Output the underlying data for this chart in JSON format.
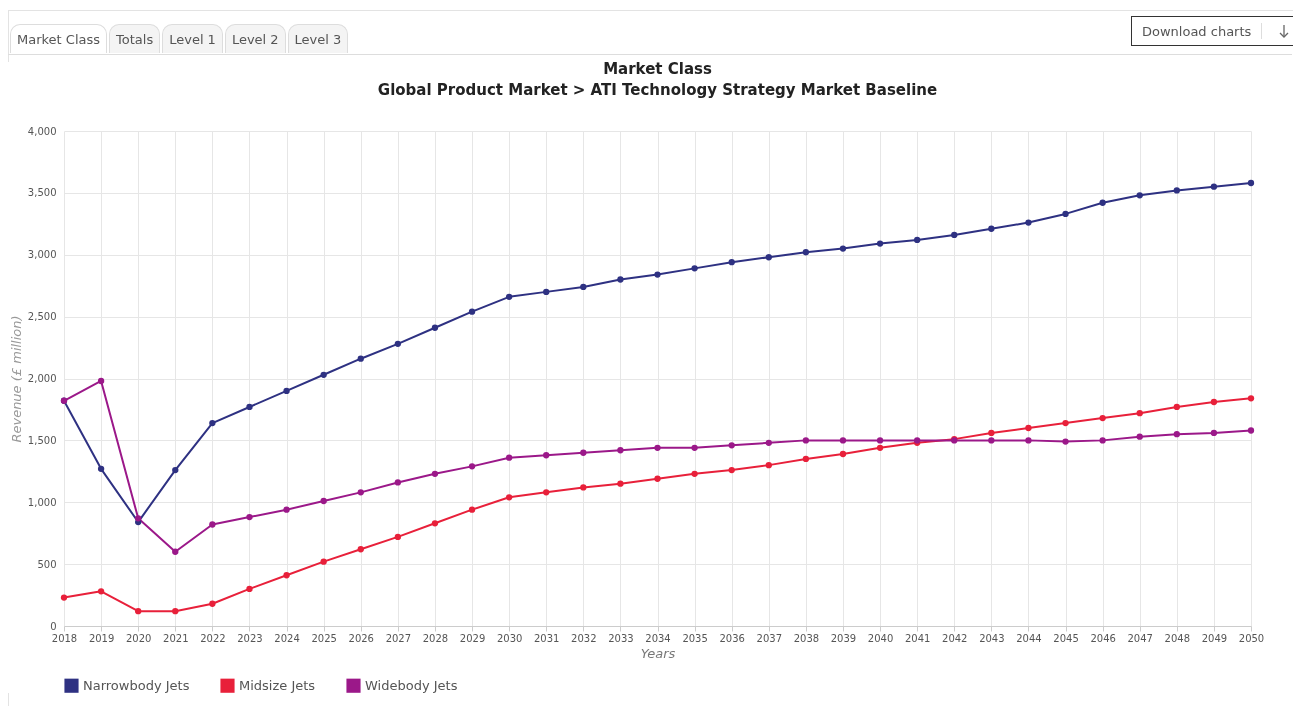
{
  "chart_data": {
    "type": "line",
    "title": "Market Class",
    "subtitle": "Global Product Market > ATI Technology Strategy Market Baseline",
    "xlabel": "Years",
    "ylabel": "Revenue (£ million)",
    "annotations": [
      "Market Class",
      "Totals",
      "Level 1",
      "Level 2",
      "Level 3",
      "Download charts"
    ],
    "categories": [
      "2018",
      "2019",
      "2020",
      "2021",
      "2022",
      "2023",
      "2024",
      "2025",
      "2026",
      "2027",
      "2028",
      "2029",
      "2030",
      "2031",
      "2032",
      "2033",
      "2034",
      "2035",
      "2036",
      "2037",
      "2038",
      "2039",
      "2040",
      "2041",
      "2042",
      "2043",
      "2044",
      "2045",
      "2046",
      "2047",
      "2048",
      "2049",
      "2050"
    ],
    "series": [
      {
        "name": "Narrowbody Jets",
        "color": "#2e3182",
        "values": [
          1820,
          1270,
          840,
          1260,
          1640,
          1770,
          1900,
          2030,
          2160,
          2280,
          2410,
          2540,
          2660,
          2700,
          2740,
          2800,
          2840,
          2890,
          2940,
          2980,
          3020,
          3050,
          3090,
          3120,
          3160,
          3210,
          3260,
          3330,
          3420,
          3480,
          3520,
          3550,
          3580
        ]
      },
      {
        "name": "Midsize Jets",
        "color": "#e8203a",
        "values": [
          230,
          280,
          120,
          120,
          180,
          300,
          410,
          520,
          620,
          720,
          830,
          940,
          1040,
          1080,
          1120,
          1150,
          1190,
          1230,
          1260,
          1300,
          1350,
          1390,
          1440,
          1480,
          1510,
          1560,
          1600,
          1640,
          1680,
          1720,
          1770,
          1810,
          1840
        ]
      },
      {
        "name": "Widebody Jets",
        "color": "#9b1889",
        "values": [
          1820,
          1980,
          870,
          600,
          820,
          880,
          940,
          1010,
          1080,
          1160,
          1230,
          1290,
          1360,
          1380,
          1400,
          1420,
          1440,
          1440,
          1460,
          1480,
          1500,
          1500,
          1500,
          1500,
          1500,
          1500,
          1500,
          1490,
          1500,
          1530,
          1550,
          1560,
          1580
        ]
      }
    ],
    "ylim": [
      0,
      4000
    ],
    "yticks": [
      0,
      {
        "value": 500,
        "label": "500"
      },
      {
        "value": 1000,
        "label": "1,000"
      },
      {
        "value": 1500,
        "label": "1,500"
      },
      {
        "value": 2000,
        "label": "2,000"
      },
      {
        "value": 2500,
        "label": "2,500"
      },
      {
        "value": 3000,
        "label": "3,000"
      },
      {
        "value": 3500,
        "label": "3,500"
      },
      {
        "value": 4000,
        "label": "4,000"
      }
    ],
    "grid": true,
    "legend": "bottom left",
    "marker": "circle",
    "line_style": "solid"
  }
}
